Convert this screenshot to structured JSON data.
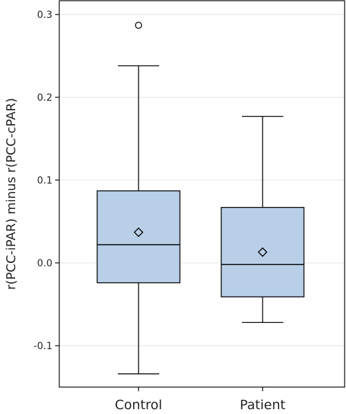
{
  "chart_data": {
    "type": "box",
    "title": "",
    "xlabel": "",
    "ylabel": "r(PCC-iPAR) minus r(PCC-cPAR)",
    "ylim": [
      -0.15,
      0.3
    ],
    "yticks": [
      0.3,
      0.2,
      0.1,
      0.0,
      -0.1
    ],
    "ytick_labels": [
      "0.3",
      "0.2",
      "0.1",
      "0.0",
      "-0.1"
    ],
    "grid": "horizontal",
    "categories": [
      "Control",
      "Patient"
    ],
    "boxes": [
      {
        "category": "Control",
        "whisker_low": -0.134,
        "q1": -0.024,
        "median": 0.022,
        "q3": 0.087,
        "whisker_high": 0.238,
        "mean": 0.037,
        "outliers": [
          0.287
        ]
      },
      {
        "category": "Patient",
        "whisker_low": -0.072,
        "q1": -0.041,
        "median": -0.002,
        "q3": 0.067,
        "whisker_high": 0.177,
        "mean": 0.013,
        "outliers": []
      }
    ],
    "colors": {
      "box_fill": "#b9cfe8",
      "stroke": "#000000",
      "grid": "#e0e0e0"
    }
  }
}
